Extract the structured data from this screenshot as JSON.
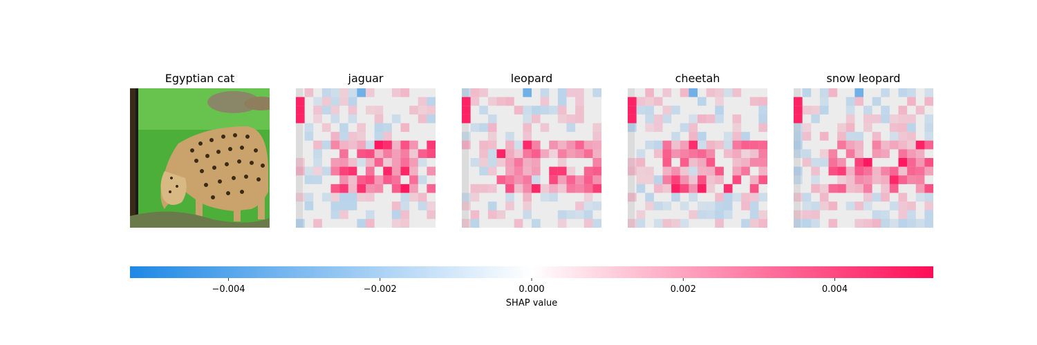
{
  "chart_data": {
    "type": "heatmap",
    "panels": [
      {
        "title": "Egyptian cat",
        "kind": "image"
      },
      {
        "title": "jaguar",
        "kind": "shap",
        "seed": 11
      },
      {
        "title": "leopard",
        "kind": "shap",
        "seed": 23
      },
      {
        "title": "cheetah",
        "kind": "shap",
        "seed": 37
      },
      {
        "title": "snow leopard",
        "kind": "shap",
        "seed": 53
      }
    ],
    "colorbar": {
      "label": "SHAP value",
      "range": [
        -0.0053,
        0.0053
      ],
      "ticks": [
        -0.004,
        -0.002,
        0.0,
        0.002,
        0.004
      ],
      "tick_labels": [
        "−0.004",
        "−0.002",
        "0.000",
        "0.002",
        "0.004"
      ],
      "negative_color": "#1e88e5",
      "positive_color": "#ff0d57"
    }
  }
}
